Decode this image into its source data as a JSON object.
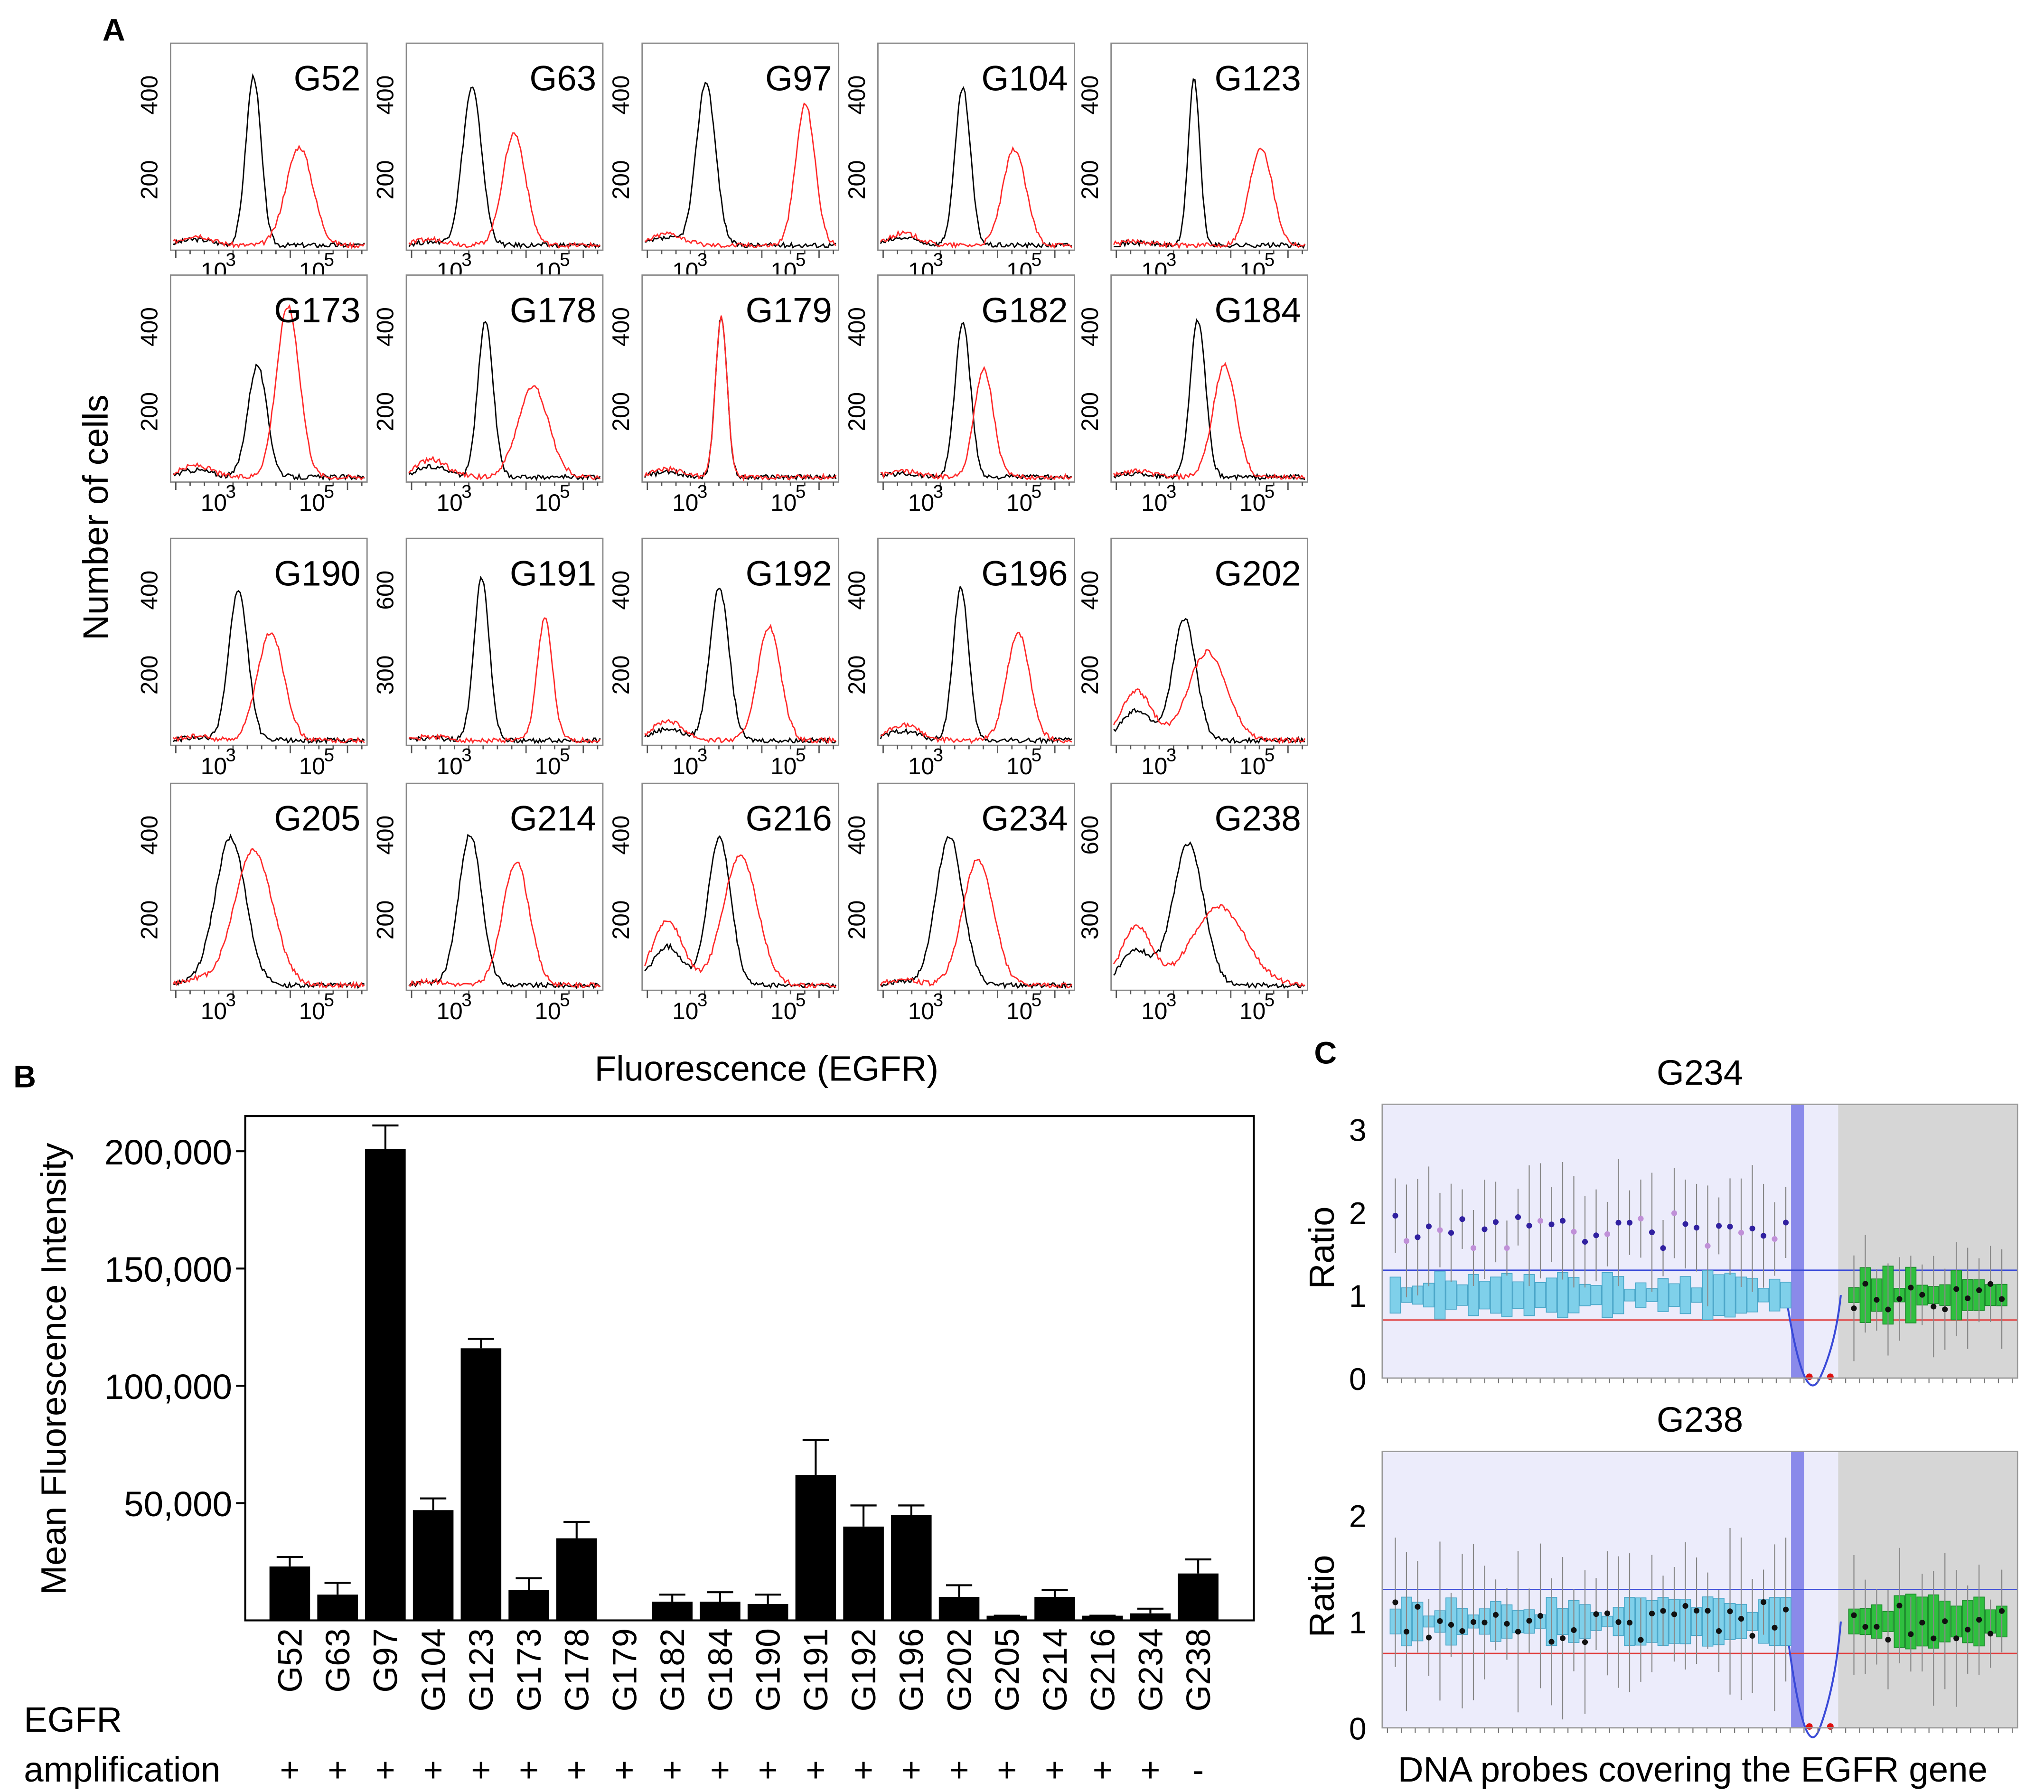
{
  "panel_labels": {
    "a": "A",
    "b": "B",
    "c": "C"
  },
  "panel_a": {
    "ylabel": "Number of cells",
    "xlabel": "Fluorescence (EGFR)",
    "xtick_labels": [
      "10",
      "3",
      "10",
      "5"
    ],
    "colors": {
      "control": "#000000",
      "egfr": "#ff2a2a"
    },
    "plots": [
      {
        "sample": "G52",
        "yticks": [
          "200",
          "400"
        ]
      },
      {
        "sample": "G63",
        "yticks": [
          "200",
          "400"
        ]
      },
      {
        "sample": "G97",
        "yticks": [
          "200",
          "400"
        ]
      },
      {
        "sample": "G104",
        "yticks": [
          "200",
          "400"
        ]
      },
      {
        "sample": "G123",
        "yticks": [
          "200",
          "400"
        ]
      },
      {
        "sample": "G173",
        "yticks": [
          "200",
          "400"
        ]
      },
      {
        "sample": "G178",
        "yticks": [
          "200",
          "400"
        ]
      },
      {
        "sample": "G179",
        "yticks": [
          "200",
          "400"
        ]
      },
      {
        "sample": "G182",
        "yticks": [
          "200",
          "400"
        ]
      },
      {
        "sample": "G184",
        "yticks": [
          "200",
          "400"
        ]
      },
      {
        "sample": "G190",
        "yticks": [
          "200",
          "400"
        ]
      },
      {
        "sample": "G191",
        "yticks": [
          "300",
          "600"
        ]
      },
      {
        "sample": "G192",
        "yticks": [
          "200",
          "400"
        ]
      },
      {
        "sample": "G196",
        "yticks": [
          "200",
          "400"
        ]
      },
      {
        "sample": "G202",
        "yticks": [
          "200",
          "400"
        ]
      },
      {
        "sample": "G205",
        "yticks": [
          "200",
          "400"
        ]
      },
      {
        "sample": "G214",
        "yticks": [
          "200",
          "400"
        ]
      },
      {
        "sample": "G216",
        "yticks": [
          "200",
          "400"
        ]
      },
      {
        "sample": "G234",
        "yticks": [
          "200",
          "400"
        ]
      },
      {
        "sample": "G238",
        "yticks": [
          "300",
          "600"
        ]
      }
    ]
  },
  "chart_data": [
    {
      "type": "bar",
      "ylabel": "Mean Fluorescence Intensity",
      "ylim": [
        0,
        215000
      ],
      "yticks": [
        50000,
        100000,
        150000,
        200000
      ],
      "ytick_labels": [
        "50,000",
        "100,000",
        "150,000",
        "200,000"
      ],
      "categories": [
        "G52",
        "G63",
        "G97",
        "G104",
        "G123",
        "G173",
        "G178",
        "G179",
        "G182",
        "G184",
        "G190",
        "G191",
        "G192",
        "G196",
        "G202",
        "G205",
        "G214",
        "G216",
        "G234",
        "G238"
      ],
      "values": [
        23000,
        11000,
        201000,
        47000,
        116000,
        13000,
        35000,
        0,
        8000,
        8000,
        7000,
        62000,
        40000,
        45000,
        10000,
        2000,
        10000,
        2000,
        3000,
        20000
      ],
      "error": [
        4000,
        5000,
        10000,
        5000,
        4000,
        5000,
        7000,
        0,
        3000,
        4000,
        4000,
        15000,
        9000,
        4000,
        5000,
        0,
        3000,
        0,
        2000,
        6000
      ],
      "bar_color": "#000000",
      "row_label_1": "EGFR",
      "row_label_2": "amplification",
      "amplification": [
        "+",
        "+",
        "+",
        "+",
        "+",
        "+",
        "+",
        "+",
        "+",
        "+",
        "+",
        "+",
        "+",
        "+",
        "+",
        "+",
        "+",
        "+",
        "+",
        "-"
      ]
    },
    {
      "type": "scatter",
      "title": "G234",
      "ylabel": "Ratio",
      "yticks": [
        0,
        1,
        2,
        3
      ],
      "ylim": [
        0,
        3.3
      ]
    },
    {
      "type": "scatter",
      "title": "G238",
      "ylabel": "Ratio",
      "yticks": [
        0,
        1,
        2
      ],
      "ylim": [
        0,
        2.6
      ],
      "xlabel": "DNA probes covering the  EGFR gene"
    }
  ]
}
